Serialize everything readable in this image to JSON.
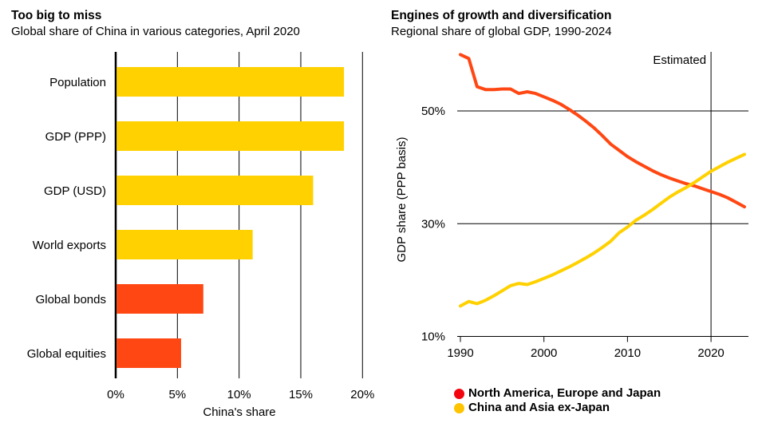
{
  "chart_data": [
    {
      "type": "bar",
      "orientation": "horizontal",
      "title": "Too big to miss",
      "subtitle": "Global share of China in various categories, April 2020",
      "categories": [
        "Population",
        "GDP (PPP)",
        "GDP (USD)",
        "World exports",
        "Global bonds",
        "Global equities"
      ],
      "values": [
        18.5,
        18.5,
        16.0,
        11.1,
        7.1,
        5.3
      ],
      "bar_colors": [
        "#ffd100",
        "#ffd100",
        "#ffd100",
        "#ffd100",
        "#ff4713",
        "#ff4713"
      ],
      "xlabel": "China's share",
      "xlim": [
        0,
        20
      ],
      "xticks": [
        0,
        5,
        10,
        15,
        20
      ],
      "xtick_labels": [
        "0%",
        "5%",
        "10%",
        "15%",
        "20%"
      ],
      "grid": "vertical-lines"
    },
    {
      "type": "line",
      "title": "Engines of growth and diversification",
      "subtitle": "Regional share of global GDP, 1990-2024",
      "ylabel": "GDP share (PPP basis)",
      "annotation": {
        "label": "Estimated",
        "x": 2020
      },
      "x": [
        1990,
        1991,
        1992,
        1993,
        1994,
        1995,
        1996,
        1997,
        1998,
        1999,
        2000,
        2001,
        2002,
        2003,
        2004,
        2005,
        2006,
        2007,
        2008,
        2009,
        2010,
        2011,
        2012,
        2013,
        2014,
        2015,
        2016,
        2017,
        2018,
        2019,
        2020,
        2021,
        2022,
        2023,
        2024
      ],
      "series": [
        {
          "name": "North America, Europe and Japan",
          "color": "#ff4713",
          "legend_dot_color": "#f2050f",
          "values": [
            60.0,
            59.3,
            54.3,
            53.8,
            53.8,
            53.9,
            53.9,
            53.1,
            53.4,
            53.1,
            52.5,
            51.9,
            51.2,
            50.3,
            49.3,
            48.2,
            47.0,
            45.6,
            44.1,
            43.0,
            41.9,
            41.0,
            40.2,
            39.4,
            38.7,
            38.1,
            37.6,
            37.1,
            36.7,
            36.2,
            35.7,
            35.2,
            34.6,
            33.8,
            33.0
          ]
        },
        {
          "name": "China and Asia ex-Japan",
          "color": "#ffd100",
          "legend_dot_color": "#ffc400",
          "values": [
            15.4,
            16.2,
            15.8,
            16.4,
            17.2,
            18.1,
            19.0,
            19.4,
            19.2,
            19.7,
            20.3,
            20.9,
            21.6,
            22.3,
            23.1,
            23.9,
            24.8,
            25.8,
            26.9,
            28.4,
            29.4,
            30.6,
            31.5,
            32.5,
            33.6,
            34.7,
            35.6,
            36.4,
            37.3,
            38.3,
            39.3,
            40.1,
            40.9,
            41.6,
            42.3
          ]
        }
      ],
      "ylim": [
        10,
        60
      ],
      "yticks": [
        10,
        30,
        50
      ],
      "ytick_labels": [
        "10%",
        "30%",
        "50%"
      ],
      "xticks": [
        1990,
        2000,
        2010,
        2020
      ],
      "legend_position": "bottom",
      "grid": "horizontal-lines"
    }
  ]
}
